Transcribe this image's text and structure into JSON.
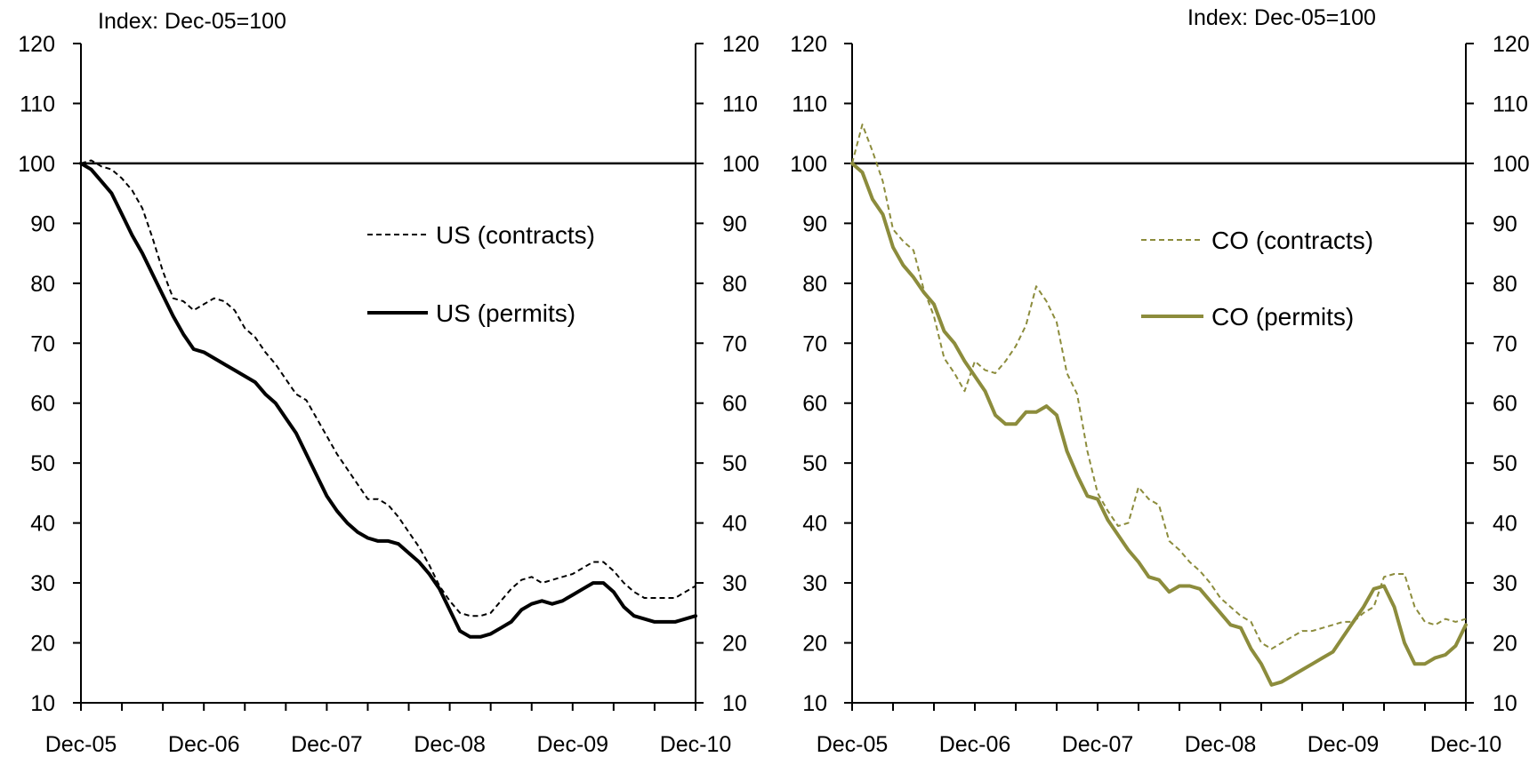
{
  "chart_data": [
    {
      "type": "line",
      "subtitle": "Index: Dec-05=100",
      "x": [
        "Dec-05",
        "Jan-06",
        "Feb-06",
        "Mar-06",
        "Apr-06",
        "May-06",
        "Jun-06",
        "Jul-06",
        "Aug-06",
        "Sep-06",
        "Oct-06",
        "Nov-06",
        "Dec-06",
        "Jan-07",
        "Feb-07",
        "Mar-07",
        "Apr-07",
        "May-07",
        "Jun-07",
        "Jul-07",
        "Aug-07",
        "Sep-07",
        "Oct-07",
        "Nov-07",
        "Dec-07",
        "Jan-08",
        "Feb-08",
        "Mar-08",
        "Apr-08",
        "May-08",
        "Jun-08",
        "Jul-08",
        "Aug-08",
        "Sep-08",
        "Oct-08",
        "Nov-08",
        "Dec-08",
        "Jan-09",
        "Feb-09",
        "Mar-09",
        "Apr-09",
        "May-09",
        "Jun-09",
        "Jul-09",
        "Aug-09",
        "Sep-09",
        "Oct-09",
        "Nov-09",
        "Dec-09",
        "Jan-10",
        "Feb-10",
        "Mar-10",
        "Apr-10",
        "May-10",
        "Jun-10",
        "Jul-10",
        "Aug-10",
        "Sep-10",
        "Oct-10",
        "Nov-10",
        "Dec-10"
      ],
      "xticks": [
        "Dec-05",
        "Dec-06",
        "Dec-07",
        "Dec-08",
        "Dec-09",
        "Dec-10"
      ],
      "ylim": [
        10,
        120
      ],
      "yticks": [
        10,
        20,
        30,
        40,
        50,
        60,
        70,
        80,
        90,
        100,
        110,
        120
      ],
      "reference_line": 100,
      "legend_position": "center-right",
      "series": [
        {
          "name": "US (contracts)",
          "style": "dashed",
          "color": "#000000",
          "values": [
            100,
            100.5,
            99.5,
            99,
            97.5,
            95.5,
            92.5,
            87.5,
            82,
            77.5,
            77,
            75.5,
            76.5,
            77.5,
            77,
            75.5,
            72.5,
            71,
            68.5,
            66.5,
            64,
            61.5,
            60.5,
            57.5,
            54.5,
            51.5,
            49,
            46.5,
            44,
            44,
            43,
            41,
            38.5,
            36,
            33,
            29.5,
            27,
            25,
            24.5,
            24.5,
            25,
            27,
            29,
            30.5,
            31,
            30,
            30.5,
            31,
            31.5,
            32.5,
            33.5,
            33.5,
            32,
            30,
            28.5,
            27.5,
            27.5,
            27.5,
            27.5,
            28.5,
            29.5
          ]
        },
        {
          "name": "US (permits)",
          "style": "solid",
          "color": "#000000",
          "values": [
            100,
            99,
            97,
            95,
            91.5,
            88,
            85,
            81.5,
            78,
            74.5,
            71.5,
            69,
            68.5,
            67.5,
            66.5,
            65.5,
            64.5,
            63.5,
            61.5,
            60,
            57.5,
            55,
            51.5,
            48,
            44.5,
            42,
            40,
            38.5,
            37.5,
            37,
            37,
            36.5,
            35,
            33.5,
            31.5,
            29,
            25.5,
            22,
            21,
            21,
            21.5,
            22.5,
            23.5,
            25.5,
            26.5,
            27,
            26.5,
            27,
            28,
            29,
            30,
            30,
            28.5,
            26,
            24.5,
            24,
            23.5,
            23.5,
            23.5,
            24,
            24.5
          ]
        }
      ]
    },
    {
      "type": "line",
      "subtitle": "Index: Dec-05=100",
      "x": [
        "Dec-05",
        "Jan-06",
        "Feb-06",
        "Mar-06",
        "Apr-06",
        "May-06",
        "Jun-06",
        "Jul-06",
        "Aug-06",
        "Sep-06",
        "Oct-06",
        "Nov-06",
        "Dec-06",
        "Jan-07",
        "Feb-07",
        "Mar-07",
        "Apr-07",
        "May-07",
        "Jun-07",
        "Jul-07",
        "Aug-07",
        "Sep-07",
        "Oct-07",
        "Nov-07",
        "Dec-07",
        "Jan-08",
        "Feb-08",
        "Mar-08",
        "Apr-08",
        "May-08",
        "Jun-08",
        "Jul-08",
        "Aug-08",
        "Sep-08",
        "Oct-08",
        "Nov-08",
        "Dec-08",
        "Jan-09",
        "Feb-09",
        "Mar-09",
        "Apr-09",
        "May-09",
        "Jun-09",
        "Jul-09",
        "Aug-09",
        "Sep-09",
        "Oct-09",
        "Nov-09",
        "Dec-09",
        "Jan-10",
        "Feb-10",
        "Mar-10",
        "Apr-10",
        "May-10",
        "Jun-10",
        "Jul-10",
        "Aug-10",
        "Sep-10",
        "Oct-10",
        "Nov-10",
        "Dec-10"
      ],
      "xticks": [
        "Dec-05",
        "Dec-06",
        "Dec-07",
        "Dec-08",
        "Dec-09",
        "Dec-10"
      ],
      "ylim": [
        10,
        120
      ],
      "yticks": [
        10,
        20,
        30,
        40,
        50,
        60,
        70,
        80,
        90,
        100,
        110,
        120
      ],
      "reference_line": 100,
      "legend_position": "center-right",
      "series": [
        {
          "name": "CO (contracts)",
          "style": "dashed",
          "color": "#8c8c3c",
          "values": [
            100,
            106.5,
            102,
            97,
            89,
            87,
            85.5,
            79,
            74.5,
            67.5,
            65,
            62,
            67,
            65.5,
            65,
            67,
            69.5,
            73,
            79.5,
            77,
            73.5,
            65,
            61.5,
            52,
            45,
            42,
            39.5,
            40,
            46,
            44,
            43,
            37,
            35.5,
            33.5,
            32,
            30,
            27.5,
            26,
            24.5,
            23.5,
            20,
            19,
            20,
            21,
            22,
            22,
            22.5,
            23,
            23.5,
            23.5,
            25,
            26,
            31,
            31.5,
            31.5,
            26,
            23.5,
            23,
            24,
            23.5,
            24
          ]
        },
        {
          "name": "CO (permits)",
          "style": "solid",
          "color": "#8c8c3c",
          "values": [
            100,
            98.5,
            94,
            91.5,
            86,
            83,
            81,
            78.5,
            76.5,
            72,
            70,
            67,
            64.5,
            62,
            58,
            56.5,
            56.5,
            58.5,
            58.5,
            59.5,
            58,
            52,
            48,
            44.5,
            44,
            40.5,
            38,
            35.5,
            33.5,
            31,
            30.5,
            28.5,
            29.5,
            29.5,
            29,
            27,
            25,
            23,
            22.5,
            19,
            16.5,
            13,
            13.5,
            14.5,
            15.5,
            16.5,
            17.5,
            18.5,
            21,
            23.5,
            26,
            29,
            29.5,
            26,
            20,
            16.5,
            16.5,
            17.5,
            18,
            19.5,
            23
          ]
        }
      ]
    }
  ]
}
